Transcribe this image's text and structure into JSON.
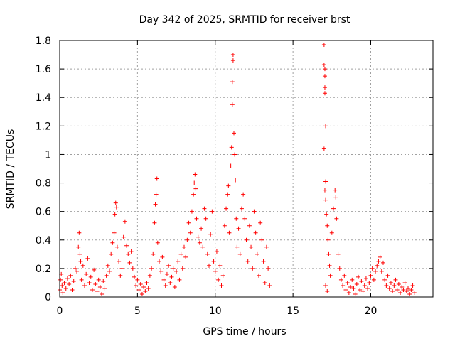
{
  "chart_data": {
    "type": "scatter",
    "title": "Day 342 of 2025, SRMTID for receiver brst",
    "xlabel": "GPS time / hours",
    "ylabel": "SRMTID / TECUs",
    "xlim": [
      0,
      24
    ],
    "ylim": [
      0,
      1.8
    ],
    "x_ticks": [
      0,
      5,
      10,
      15,
      20
    ],
    "x_tick_labels": [
      "0",
      "5",
      "10",
      "15",
      "20"
    ],
    "y_ticks": [
      0,
      0.2,
      0.4,
      0.6,
      0.8,
      1,
      1.2,
      1.4,
      1.6,
      1.8
    ],
    "y_tick_labels": [
      "0",
      "0.2",
      "0.4",
      "0.6",
      "0.8",
      "1",
      "1.2",
      "1.4",
      "1.6",
      "1.8"
    ],
    "grid": true,
    "marker": "+",
    "color": "#ff0000",
    "series": [
      {
        "name": "SRMTID",
        "points": [
          [
            0.0,
            0.05
          ],
          [
            0.05,
            0.12
          ],
          [
            0.1,
            0.16
          ],
          [
            0.15,
            0.08
          ],
          [
            0.2,
            0.03
          ],
          [
            0.3,
            0.1
          ],
          [
            0.4,
            0.06
          ],
          [
            0.5,
            0.13
          ],
          [
            0.6,
            0.09
          ],
          [
            0.7,
            0.15
          ],
          [
            0.8,
            0.05
          ],
          [
            0.9,
            0.11
          ],
          [
            1.0,
            0.2
          ],
          [
            1.1,
            0.18
          ],
          [
            1.2,
            0.35
          ],
          [
            1.25,
            0.45
          ],
          [
            1.3,
            0.3
          ],
          [
            1.35,
            0.25
          ],
          [
            1.4,
            0.12
          ],
          [
            1.5,
            0.22
          ],
          [
            1.6,
            0.08
          ],
          [
            1.7,
            0.16
          ],
          [
            1.8,
            0.27
          ],
          [
            1.9,
            0.1
          ],
          [
            2.0,
            0.14
          ],
          [
            2.1,
            0.05
          ],
          [
            2.2,
            0.19
          ],
          [
            2.3,
            0.09
          ],
          [
            2.4,
            0.04
          ],
          [
            2.5,
            0.12
          ],
          [
            2.6,
            0.07
          ],
          [
            2.7,
            0.02
          ],
          [
            2.8,
            0.11
          ],
          [
            2.9,
            0.06
          ],
          [
            3.0,
            0.15
          ],
          [
            3.1,
            0.22
          ],
          [
            3.2,
            0.18
          ],
          [
            3.3,
            0.3
          ],
          [
            3.4,
            0.38
          ],
          [
            3.5,
            0.45
          ],
          [
            3.55,
            0.58
          ],
          [
            3.6,
            0.66
          ],
          [
            3.65,
            0.63
          ],
          [
            3.7,
            0.35
          ],
          [
            3.8,
            0.25
          ],
          [
            3.9,
            0.15
          ],
          [
            4.0,
            0.2
          ],
          [
            4.1,
            0.42
          ],
          [
            4.2,
            0.53
          ],
          [
            4.3,
            0.36
          ],
          [
            4.4,
            0.3
          ],
          [
            4.5,
            0.24
          ],
          [
            4.6,
            0.32
          ],
          [
            4.7,
            0.2
          ],
          [
            4.8,
            0.14
          ],
          [
            4.9,
            0.08
          ],
          [
            5.0,
            0.12
          ],
          [
            5.1,
            0.05
          ],
          [
            5.2,
            0.09
          ],
          [
            5.3,
            0.02
          ],
          [
            5.4,
            0.07
          ],
          [
            5.5,
            0.04
          ],
          [
            5.6,
            0.1
          ],
          [
            5.7,
            0.06
          ],
          [
            5.8,
            0.15
          ],
          [
            5.9,
            0.2
          ],
          [
            6.0,
            0.3
          ],
          [
            6.1,
            0.52
          ],
          [
            6.15,
            0.65
          ],
          [
            6.2,
            0.72
          ],
          [
            6.25,
            0.83
          ],
          [
            6.3,
            0.38
          ],
          [
            6.4,
            0.25
          ],
          [
            6.5,
            0.18
          ],
          [
            6.6,
            0.28
          ],
          [
            6.7,
            0.12
          ],
          [
            6.8,
            0.08
          ],
          [
            6.9,
            0.16
          ],
          [
            7.0,
            0.22
          ],
          [
            7.1,
            0.1
          ],
          [
            7.2,
            0.14
          ],
          [
            7.3,
            0.2
          ],
          [
            7.4,
            0.07
          ],
          [
            7.5,
            0.18
          ],
          [
            7.6,
            0.25
          ],
          [
            7.7,
            0.12
          ],
          [
            7.8,
            0.3
          ],
          [
            7.9,
            0.2
          ],
          [
            8.0,
            0.35
          ],
          [
            8.1,
            0.28
          ],
          [
            8.2,
            0.4
          ],
          [
            8.3,
            0.52
          ],
          [
            8.4,
            0.45
          ],
          [
            8.5,
            0.6
          ],
          [
            8.6,
            0.72
          ],
          [
            8.65,
            0.8
          ],
          [
            8.7,
            0.86
          ],
          [
            8.75,
            0.76
          ],
          [
            8.8,
            0.55
          ],
          [
            8.9,
            0.42
          ],
          [
            9.0,
            0.38
          ],
          [
            9.1,
            0.48
          ],
          [
            9.2,
            0.35
          ],
          [
            9.3,
            0.62
          ],
          [
            9.4,
            0.55
          ],
          [
            9.5,
            0.3
          ],
          [
            9.6,
            0.22
          ],
          [
            9.7,
            0.44
          ],
          [
            9.8,
            0.6
          ],
          [
            9.9,
            0.25
          ],
          [
            10.0,
            0.18
          ],
          [
            10.1,
            0.32
          ],
          [
            10.2,
            0.12
          ],
          [
            10.3,
            0.22
          ],
          [
            10.4,
            0.08
          ],
          [
            10.5,
            0.15
          ],
          [
            10.6,
            0.5
          ],
          [
            10.7,
            0.62
          ],
          [
            10.8,
            0.72
          ],
          [
            10.85,
            0.78
          ],
          [
            10.9,
            0.45
          ],
          [
            11.0,
            0.92
          ],
          [
            11.05,
            1.05
          ],
          [
            11.1,
            1.35
          ],
          [
            11.1,
            1.51
          ],
          [
            11.15,
            1.66
          ],
          [
            11.15,
            1.7
          ],
          [
            11.2,
            1.15
          ],
          [
            11.25,
            1.0
          ],
          [
            11.3,
            0.82
          ],
          [
            11.35,
            0.55
          ],
          [
            11.4,
            0.35
          ],
          [
            11.5,
            0.48
          ],
          [
            11.6,
            0.3
          ],
          [
            11.7,
            0.62
          ],
          [
            11.8,
            0.72
          ],
          [
            11.9,
            0.55
          ],
          [
            12.0,
            0.4
          ],
          [
            12.1,
            0.25
          ],
          [
            12.2,
            0.5
          ],
          [
            12.3,
            0.35
          ],
          [
            12.4,
            0.2
          ],
          [
            12.5,
            0.6
          ],
          [
            12.6,
            0.45
          ],
          [
            12.7,
            0.3
          ],
          [
            12.8,
            0.15
          ],
          [
            12.9,
            0.52
          ],
          [
            13.0,
            0.4
          ],
          [
            13.1,
            0.25
          ],
          [
            13.2,
            0.1
          ],
          [
            13.3,
            0.35
          ],
          [
            13.4,
            0.2
          ],
          [
            13.5,
            0.08
          ],
          [
            17.0,
            1.77
          ],
          [
            17.0,
            1.63
          ],
          [
            17.05,
            1.6
          ],
          [
            17.05,
            1.55
          ],
          [
            17.05,
            1.47
          ],
          [
            17.05,
            1.43
          ],
          [
            17.1,
            1.2
          ],
          [
            17.0,
            1.04
          ],
          [
            17.1,
            0.81
          ],
          [
            17.05,
            0.75
          ],
          [
            17.1,
            0.68
          ],
          [
            17.15,
            0.58
          ],
          [
            17.2,
            0.5
          ],
          [
            17.25,
            0.4
          ],
          [
            17.3,
            0.3
          ],
          [
            17.35,
            0.22
          ],
          [
            17.4,
            0.15
          ],
          [
            17.1,
            0.08
          ],
          [
            17.2,
            0.04
          ],
          [
            17.5,
            0.45
          ],
          [
            17.6,
            0.62
          ],
          [
            17.7,
            0.75
          ],
          [
            17.75,
            0.7
          ],
          [
            17.8,
            0.55
          ],
          [
            17.9,
            0.3
          ],
          [
            18.0,
            0.2
          ],
          [
            18.1,
            0.12
          ],
          [
            18.2,
            0.08
          ],
          [
            18.3,
            0.15
          ],
          [
            18.4,
            0.05
          ],
          [
            18.5,
            0.1
          ],
          [
            18.6,
            0.03
          ],
          [
            18.7,
            0.07
          ],
          [
            18.8,
            0.12
          ],
          [
            18.9,
            0.06
          ],
          [
            19.0,
            0.02
          ],
          [
            19.1,
            0.09
          ],
          [
            19.2,
            0.14
          ],
          [
            19.3,
            0.05
          ],
          [
            19.4,
            0.11
          ],
          [
            19.5,
            0.04
          ],
          [
            19.6,
            0.08
          ],
          [
            19.7,
            0.13
          ],
          [
            19.8,
            0.06
          ],
          [
            19.9,
            0.1
          ],
          [
            20.0,
            0.15
          ],
          [
            20.1,
            0.2
          ],
          [
            20.2,
            0.12
          ],
          [
            20.3,
            0.18
          ],
          [
            20.4,
            0.22
          ],
          [
            20.5,
            0.25
          ],
          [
            20.6,
            0.28
          ],
          [
            20.7,
            0.18
          ],
          [
            20.8,
            0.24
          ],
          [
            20.9,
            0.12
          ],
          [
            21.0,
            0.08
          ],
          [
            21.1,
            0.15
          ],
          [
            21.2,
            0.06
          ],
          [
            21.3,
            0.1
          ],
          [
            21.4,
            0.04
          ],
          [
            21.5,
            0.08
          ],
          [
            21.6,
            0.12
          ],
          [
            21.7,
            0.05
          ],
          [
            21.8,
            0.09
          ],
          [
            21.9,
            0.03
          ],
          [
            22.0,
            0.07
          ],
          [
            22.1,
            0.05
          ],
          [
            22.2,
            0.1
          ],
          [
            22.3,
            0.04
          ],
          [
            22.4,
            0.06
          ],
          [
            22.5,
            0.02
          ],
          [
            22.6,
            0.05
          ],
          [
            22.7,
            0.08
          ],
          [
            22.8,
            0.03
          ]
        ]
      }
    ]
  }
}
